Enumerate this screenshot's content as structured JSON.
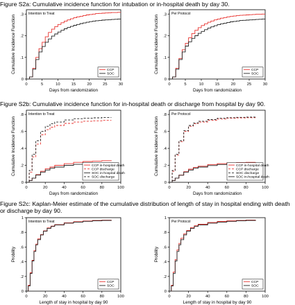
{
  "figures": [
    {
      "title": "Figure S2a: Cumulative incidence function for intubation or in-hospital death by day 30."
    },
    {
      "title": "Figure S2b: Cumulative incidence function for in-hospital death or discharge from hospital by day 90."
    },
    {
      "title": "Figure S2c: Kaplan-Meier estimate of the cumulative distribution of length of stay in hospital ending with death or discharge by day 90."
    }
  ],
  "colors": {
    "ccp": "#e8322e",
    "soc": "#222222"
  },
  "chart_data": [
    {
      "type": "line",
      "step": true,
      "inset_label": "Intention to Treat",
      "xlabel": "Days from randomization",
      "ylabel": "Cumulative Incidence Function",
      "xlim": [
        0,
        30
      ],
      "ylim": [
        0,
        0.32
      ],
      "xticks": [
        0,
        5,
        10,
        15,
        20,
        25,
        30
      ],
      "yticks": [
        0,
        0.1,
        0.2,
        0.3
      ],
      "legend_position": "bottom-right",
      "series": [
        {
          "name": "CCP",
          "color": "#e8322e",
          "dash": "",
          "x": [
            0,
            1,
            2,
            3,
            4,
            5,
            6,
            7,
            8,
            9,
            10,
            11,
            12,
            13,
            14,
            15,
            16,
            17,
            18,
            19,
            20,
            21,
            22,
            23,
            24,
            25,
            26,
            27,
            28,
            29,
            30
          ],
          "y": [
            0,
            0.01,
            0.05,
            0.1,
            0.14,
            0.17,
            0.195,
            0.215,
            0.23,
            0.242,
            0.252,
            0.26,
            0.267,
            0.273,
            0.278,
            0.283,
            0.287,
            0.29,
            0.293,
            0.296,
            0.298,
            0.3,
            0.302,
            0.303,
            0.304,
            0.305,
            0.306,
            0.307,
            0.307,
            0.308,
            0.308
          ]
        },
        {
          "name": "SOC",
          "color": "#222222",
          "dash": "",
          "x": [
            0,
            1,
            2,
            3,
            4,
            5,
            6,
            7,
            8,
            9,
            10,
            11,
            12,
            13,
            14,
            15,
            16,
            17,
            18,
            19,
            20,
            21,
            22,
            23,
            24,
            25,
            26,
            27,
            28,
            29,
            30
          ],
          "y": [
            0,
            0.01,
            0.045,
            0.09,
            0.125,
            0.15,
            0.17,
            0.185,
            0.198,
            0.208,
            0.217,
            0.225,
            0.232,
            0.238,
            0.243,
            0.248,
            0.252,
            0.256,
            0.259,
            0.262,
            0.265,
            0.267,
            0.269,
            0.27,
            0.272,
            0.273,
            0.274,
            0.275,
            0.276,
            0.277,
            0.278
          ]
        }
      ]
    },
    {
      "type": "line",
      "step": true,
      "inset_label": "Per Protocol",
      "xlabel": "Days from randomization",
      "ylabel": "Cumulative Incidence Function",
      "xlim": [
        0,
        30
      ],
      "ylim": [
        0,
        0.32
      ],
      "xticks": [
        0,
        5,
        10,
        15,
        20,
        25,
        30
      ],
      "yticks": [
        0,
        0.1,
        0.2,
        0.3
      ],
      "legend_position": "bottom-right",
      "series": [
        {
          "name": "CCP",
          "color": "#e8322e",
          "dash": "",
          "x": [
            0,
            1,
            2,
            3,
            4,
            5,
            6,
            7,
            8,
            9,
            10,
            11,
            12,
            13,
            14,
            15,
            16,
            17,
            18,
            19,
            20,
            21,
            22,
            23,
            24,
            25,
            26,
            27,
            28,
            29,
            30
          ],
          "y": [
            0,
            0.01,
            0.05,
            0.095,
            0.135,
            0.165,
            0.19,
            0.21,
            0.225,
            0.237,
            0.247,
            0.255,
            0.262,
            0.268,
            0.273,
            0.277,
            0.281,
            0.284,
            0.287,
            0.289,
            0.291,
            0.293,
            0.294,
            0.295,
            0.296,
            0.297,
            0.298,
            0.299,
            0.299,
            0.3,
            0.3
          ]
        },
        {
          "name": "SOC",
          "color": "#222222",
          "dash": "",
          "x": [
            0,
            1,
            2,
            3,
            4,
            5,
            6,
            7,
            8,
            9,
            10,
            11,
            12,
            13,
            14,
            15,
            16,
            17,
            18,
            19,
            20,
            21,
            22,
            23,
            24,
            25,
            26,
            27,
            28,
            29,
            30
          ],
          "y": [
            0,
            0.01,
            0.045,
            0.09,
            0.125,
            0.152,
            0.172,
            0.188,
            0.2,
            0.211,
            0.22,
            0.228,
            0.235,
            0.241,
            0.246,
            0.251,
            0.255,
            0.258,
            0.261,
            0.264,
            0.266,
            0.268,
            0.27,
            0.271,
            0.272,
            0.273,
            0.274,
            0.275,
            0.276,
            0.277,
            0.278
          ]
        }
      ]
    },
    {
      "type": "line",
      "step": true,
      "inset_label": "Intention to Treat",
      "xlabel": "Days from randomization",
      "ylabel": "Cumulative Incidence Function",
      "xlim": [
        0,
        100
      ],
      "ylim": [
        0,
        0.85
      ],
      "xticks": [
        0,
        20,
        40,
        60,
        80,
        100
      ],
      "yticks": [
        0,
        0.2,
        0.4,
        0.6,
        0.8
      ],
      "legend_position": "bottom-right",
      "series": [
        {
          "name": "CCP in-hospital death",
          "color": "#e8322e",
          "dash": "",
          "x": [
            0,
            3,
            6,
            10,
            15,
            20,
            25,
            30,
            40,
            50,
            60,
            70,
            80,
            90
          ],
          "y": [
            0,
            0.02,
            0.05,
            0.09,
            0.13,
            0.16,
            0.18,
            0.2,
            0.22,
            0.235,
            0.245,
            0.25,
            0.255,
            0.258
          ]
        },
        {
          "name": "CCP discharge",
          "color": "#e8322e",
          "dash": "3,2",
          "x": [
            0,
            3,
            6,
            10,
            15,
            20,
            25,
            30,
            40,
            50,
            60,
            70,
            80,
            90
          ],
          "y": [
            0,
            0.12,
            0.3,
            0.45,
            0.56,
            0.62,
            0.65,
            0.67,
            0.695,
            0.71,
            0.72,
            0.725,
            0.73,
            0.73
          ]
        },
        {
          "name": "SOC in-hospital death",
          "color": "#222222",
          "dash": "",
          "x": [
            0,
            3,
            6,
            10,
            15,
            20,
            25,
            30,
            40,
            50,
            60,
            70,
            80,
            90
          ],
          "y": [
            0,
            0.02,
            0.05,
            0.085,
            0.12,
            0.145,
            0.165,
            0.18,
            0.2,
            0.212,
            0.22,
            0.225,
            0.228,
            0.23
          ]
        },
        {
          "name": "SOC discharge",
          "color": "#222222",
          "dash": "3,2",
          "x": [
            0,
            3,
            6,
            10,
            15,
            20,
            25,
            30,
            40,
            50,
            60,
            70,
            80,
            90
          ],
          "y": [
            0,
            0.14,
            0.33,
            0.49,
            0.6,
            0.66,
            0.69,
            0.71,
            0.735,
            0.75,
            0.755,
            0.76,
            0.765,
            0.765
          ]
        }
      ]
    },
    {
      "type": "line",
      "step": true,
      "inset_label": "Per Protocol",
      "xlabel": "Days from randomization",
      "ylabel": "Cumulative Incidence Function",
      "xlim": [
        0,
        100
      ],
      "ylim": [
        0,
        0.85
      ],
      "xticks": [
        0,
        20,
        40,
        60,
        80,
        100
      ],
      "yticks": [
        0,
        0.2,
        0.4,
        0.6,
        0.8
      ],
      "legend_position": "bottom-right",
      "series": [
        {
          "name": "CCP in-hospital death",
          "color": "#e8322e",
          "dash": "",
          "x": [
            0,
            3,
            6,
            10,
            15,
            20,
            25,
            30,
            40,
            50,
            60,
            70,
            80,
            90
          ],
          "y": [
            0,
            0.02,
            0.05,
            0.085,
            0.125,
            0.155,
            0.175,
            0.19,
            0.21,
            0.22,
            0.228,
            0.232,
            0.235,
            0.236
          ]
        },
        {
          "name": "CCP discharge",
          "color": "#e8322e",
          "dash": "3,2",
          "x": [
            0,
            3,
            6,
            10,
            15,
            20,
            25,
            30,
            40,
            50,
            60,
            70,
            80,
            90
          ],
          "y": [
            0,
            0.13,
            0.32,
            0.48,
            0.6,
            0.66,
            0.69,
            0.71,
            0.73,
            0.745,
            0.755,
            0.76,
            0.762,
            0.762
          ]
        },
        {
          "name": "SOC discharge",
          "color": "#222222",
          "dash": "3,2",
          "x": [
            0,
            3,
            6,
            10,
            15,
            20,
            25,
            30,
            40,
            50,
            60,
            70,
            80,
            90
          ],
          "y": [
            0,
            0.14,
            0.33,
            0.49,
            0.61,
            0.67,
            0.7,
            0.72,
            0.74,
            0.755,
            0.762,
            0.766,
            0.768,
            0.768
          ]
        },
        {
          "name": "SOC in-hospital death",
          "color": "#222222",
          "dash": "",
          "x": [
            0,
            3,
            6,
            10,
            15,
            20,
            25,
            30,
            40,
            50,
            60,
            70,
            80,
            90
          ],
          "y": [
            0,
            0.02,
            0.05,
            0.083,
            0.12,
            0.145,
            0.165,
            0.18,
            0.198,
            0.21,
            0.218,
            0.222,
            0.225,
            0.227
          ]
        }
      ]
    },
    {
      "type": "line",
      "step": true,
      "inset_label": "Intention to Treat",
      "xlabel": "Length of stay in hospital by day 90",
      "ylabel": "Probility",
      "xlim": [
        0,
        100
      ],
      "ylim": [
        0,
        1
      ],
      "xticks": [
        0,
        20,
        40,
        60,
        80,
        100
      ],
      "yticks": [
        0,
        0.2,
        0.4,
        0.6,
        0.8,
        1.0
      ],
      "legend_position": "bottom-right",
      "series": [
        {
          "name": "CCP",
          "color": "#e8322e",
          "dash": "",
          "x": [
            0,
            2,
            4,
            6,
            8,
            10,
            12,
            15,
            18,
            22,
            26,
            30,
            40,
            50,
            60,
            70,
            80,
            90
          ],
          "y": [
            0,
            0.08,
            0.25,
            0.42,
            0.55,
            0.64,
            0.71,
            0.77,
            0.82,
            0.86,
            0.885,
            0.905,
            0.93,
            0.945,
            0.955,
            0.962,
            0.966,
            0.968
          ]
        },
        {
          "name": "SOC",
          "color": "#222222",
          "dash": "",
          "x": [
            0,
            2,
            4,
            6,
            8,
            10,
            12,
            15,
            18,
            22,
            26,
            30,
            40,
            50,
            60,
            70,
            80,
            90
          ],
          "y": [
            0,
            0.07,
            0.24,
            0.41,
            0.54,
            0.63,
            0.7,
            0.765,
            0.815,
            0.855,
            0.88,
            0.9,
            0.925,
            0.94,
            0.95,
            0.957,
            0.962,
            0.965
          ]
        }
      ]
    },
    {
      "type": "line",
      "step": true,
      "inset_label": "Per Protocol",
      "xlabel": "Length of stay in hospital by day 90",
      "ylabel": "Probility",
      "xlim": [
        0,
        100
      ],
      "ylim": [
        0,
        1
      ],
      "xticks": [
        0,
        20,
        40,
        60,
        80,
        100
      ],
      "yticks": [
        0,
        0.2,
        0.4,
        0.6,
        0.8,
        1.0
      ],
      "legend_position": "bottom-right",
      "series": [
        {
          "name": "CCP",
          "color": "#e8322e",
          "dash": "",
          "x": [
            0,
            2,
            4,
            6,
            8,
            10,
            12,
            15,
            18,
            22,
            26,
            30,
            40,
            50,
            60,
            70,
            80,
            90
          ],
          "y": [
            0,
            0.08,
            0.26,
            0.43,
            0.56,
            0.65,
            0.72,
            0.78,
            0.825,
            0.865,
            0.89,
            0.91,
            0.935,
            0.948,
            0.957,
            0.963,
            0.967,
            0.969
          ]
        },
        {
          "name": "SOC",
          "color": "#222222",
          "dash": "",
          "x": [
            0,
            2,
            4,
            6,
            8,
            10,
            12,
            15,
            18,
            22,
            26,
            30,
            40,
            50,
            60,
            70,
            80,
            90
          ],
          "y": [
            0,
            0.07,
            0.24,
            0.41,
            0.54,
            0.63,
            0.7,
            0.765,
            0.815,
            0.855,
            0.88,
            0.9,
            0.925,
            0.94,
            0.95,
            0.957,
            0.962,
            0.965
          ]
        }
      ]
    }
  ]
}
